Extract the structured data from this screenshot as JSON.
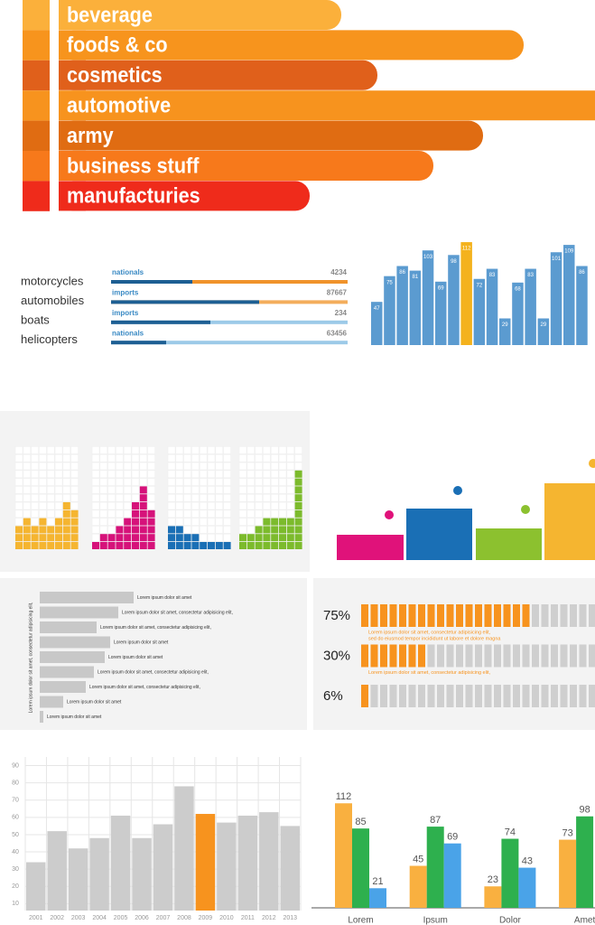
{
  "ribbons": {
    "labels": [
      "beverage",
      "foods & co",
      "cosmetics",
      "automotive",
      "army",
      "business stuff",
      "manufacturies"
    ],
    "colors": [
      "#fbb03b",
      "#f7941d",
      "#e0601b",
      "#f7931e",
      "#e06c12",
      "#f7791b",
      "#ef2b1b"
    ]
  },
  "vehicles": {
    "labels": [
      "motorcycles",
      "automobiles",
      "boats",
      "helicopters"
    ],
    "rows": [
      {
        "tag": "nationals",
        "number": "4234"
      },
      {
        "tag": "imports",
        "number": "87667"
      },
      {
        "tag": "imports",
        "number": "234"
      },
      {
        "tag": "nationals",
        "number": "63456"
      }
    ]
  },
  "lorem_bars": {
    "axis_label": "Lorem ipsum dolor sit amet, consectetur adipisicing elit,",
    "labels": [
      "Lorem ipsum dolor sit amet",
      "Lorem ipsum dolor sit amet, consectetur adipisicing elit,",
      "Lorem ipsum dolor sit amet, consectetur adipisicing elit,",
      "Lorem ipsum dolor sit amet",
      "Lorem ipsum dolor sit amet",
      "Lorem ipsum dolor sit amet, consectetur adipisicing elit,",
      "Lorem ipsum dolor sit amet, consectetur adipisicing elit,",
      "Lorem ipsum dolor sit amet",
      "Lorem ipsum dolor sit amet"
    ]
  },
  "percent_blocks": {
    "rows": [
      {
        "value": 75,
        "label": "75%",
        "notes": [
          "Lorem ipsum dolor sit amet, consectetur adipisicing elit,",
          "sed do eiusmod tempor incididunt ut labore et dolore magna"
        ]
      },
      {
        "value": 30,
        "label": "30%",
        "notes": [
          "Lorem ipsum dolor sit amet, consectetur adipisicing elit,"
        ]
      },
      {
        "value": 6,
        "label": "6%",
        "notes": []
      }
    ]
  },
  "chart_data": [
    {
      "type": "bar",
      "values": [
        47,
        75,
        86,
        81,
        103,
        69,
        98,
        112,
        72,
        83,
        29,
        68,
        83,
        29,
        101,
        109,
        86
      ],
      "colors": [
        "#5b9bd0",
        "#5b9bd0",
        "#5b9bd0",
        "#5b9bd0",
        "#5b9bd0",
        "#5b9bd0",
        "#5b9bd0",
        "#f4b21d",
        "#5b9bd0",
        "#5b9bd0",
        "#5b9bd0",
        "#5b9bd0",
        "#5b9bd0",
        "#5b9bd0",
        "#5b9bd0",
        "#5b9bd0",
        "#5b9bd0"
      ],
      "ylim": [
        0,
        115
      ]
    },
    {
      "type": "bar",
      "categories": [
        "2001",
        "2002",
        "2003",
        "2004",
        "2005",
        "2006",
        "2007",
        "2008",
        "2009",
        "2010",
        "2011",
        "2012",
        "2013"
      ],
      "values": [
        34,
        52,
        42,
        48,
        61,
        48,
        56,
        78,
        62,
        57,
        61,
        63,
        55
      ],
      "colors": [
        "#cccccc",
        "#cccccc",
        "#cccccc",
        "#cccccc",
        "#cccccc",
        "#cccccc",
        "#cccccc",
        "#cccccc",
        "#f7931e",
        "#cccccc",
        "#cccccc",
        "#cccccc",
        "#cccccc"
      ],
      "ylim": [
        6,
        95
      ],
      "yticks": [
        10,
        20,
        30,
        40,
        50,
        60,
        70,
        80,
        90
      ],
      "grid": true
    },
    {
      "type": "grouped_bar",
      "categories": [
        "Lorem",
        "Ipsum",
        "Dolor",
        "Amet"
      ],
      "series": [
        {
          "color": "#f9b040",
          "values": [
            112,
            45,
            23,
            73
          ]
        },
        {
          "color": "#2eb04e",
          "values": [
            85,
            87,
            74,
            98
          ]
        },
        {
          "color": "#4aa3e8",
          "values": [
            21,
            69,
            43,
            null
          ]
        }
      ],
      "ylim": [
        0,
        120
      ]
    }
  ]
}
